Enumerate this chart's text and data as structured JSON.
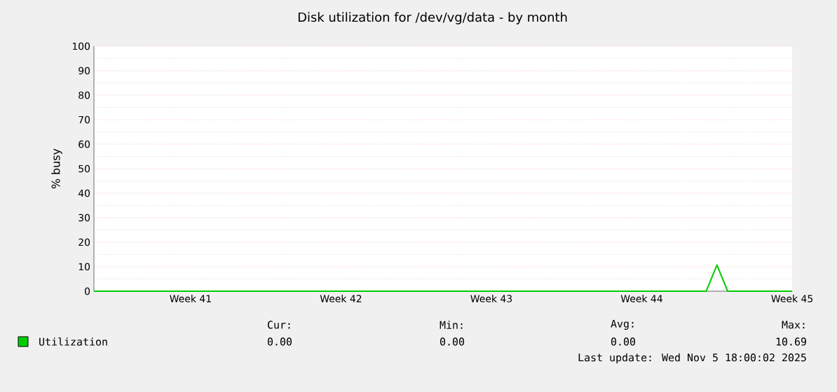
{
  "chart_data": {
    "type": "line",
    "title": "Disk utilization for /dev/vg/data - by month",
    "ylabel": "% busy",
    "categories": [
      null,
      null,
      null,
      null,
      null,
      null,
      null,
      null,
      null,
      "Week 41",
      null,
      null,
      null,
      null,
      null,
      null,
      null,
      null,
      null,
      null,
      null,
      null,
      null,
      "Week 42",
      null,
      null,
      null,
      null,
      null,
      null,
      null,
      null,
      null,
      null,
      null,
      null,
      null,
      "Week 43",
      null,
      null,
      null,
      null,
      null,
      null,
      null,
      null,
      null,
      null,
      null,
      null,
      null,
      "Week 44",
      null,
      null,
      null,
      null,
      null,
      null,
      null,
      null,
      null,
      null,
      null,
      null,
      null,
      "Week 45"
    ],
    "ylim": [
      0,
      100
    ],
    "yticks": [
      0,
      10,
      20,
      30,
      40,
      50,
      60,
      70,
      80,
      90,
      100
    ],
    "grid": "y",
    "legend": "bottom",
    "series": [
      {
        "name": "Utilization",
        "color": "#00cc00",
        "values": [
          0,
          0,
          0,
          0,
          0,
          0,
          0,
          0,
          0,
          0,
          0,
          0,
          0,
          0,
          0,
          0,
          0,
          0,
          0,
          0,
          0,
          0,
          0,
          0,
          0,
          0,
          0,
          0,
          0,
          0,
          0,
          0,
          0,
          0,
          0,
          0,
          0,
          0,
          0,
          0,
          0,
          0,
          0,
          0,
          0,
          0,
          0,
          0,
          0,
          0,
          0,
          0,
          0,
          0,
          0,
          0,
          0,
          0,
          10.7,
          0,
          0,
          0,
          0,
          0,
          0,
          0
        ]
      }
    ],
    "annotations": [
      "Cur:",
      "Min:",
      "Avg:",
      "Max:",
      "0.00",
      "0.00",
      "0.00",
      "10.69",
      "Last update: Wed Nov  5 18:00:02 2025"
    ]
  }
}
